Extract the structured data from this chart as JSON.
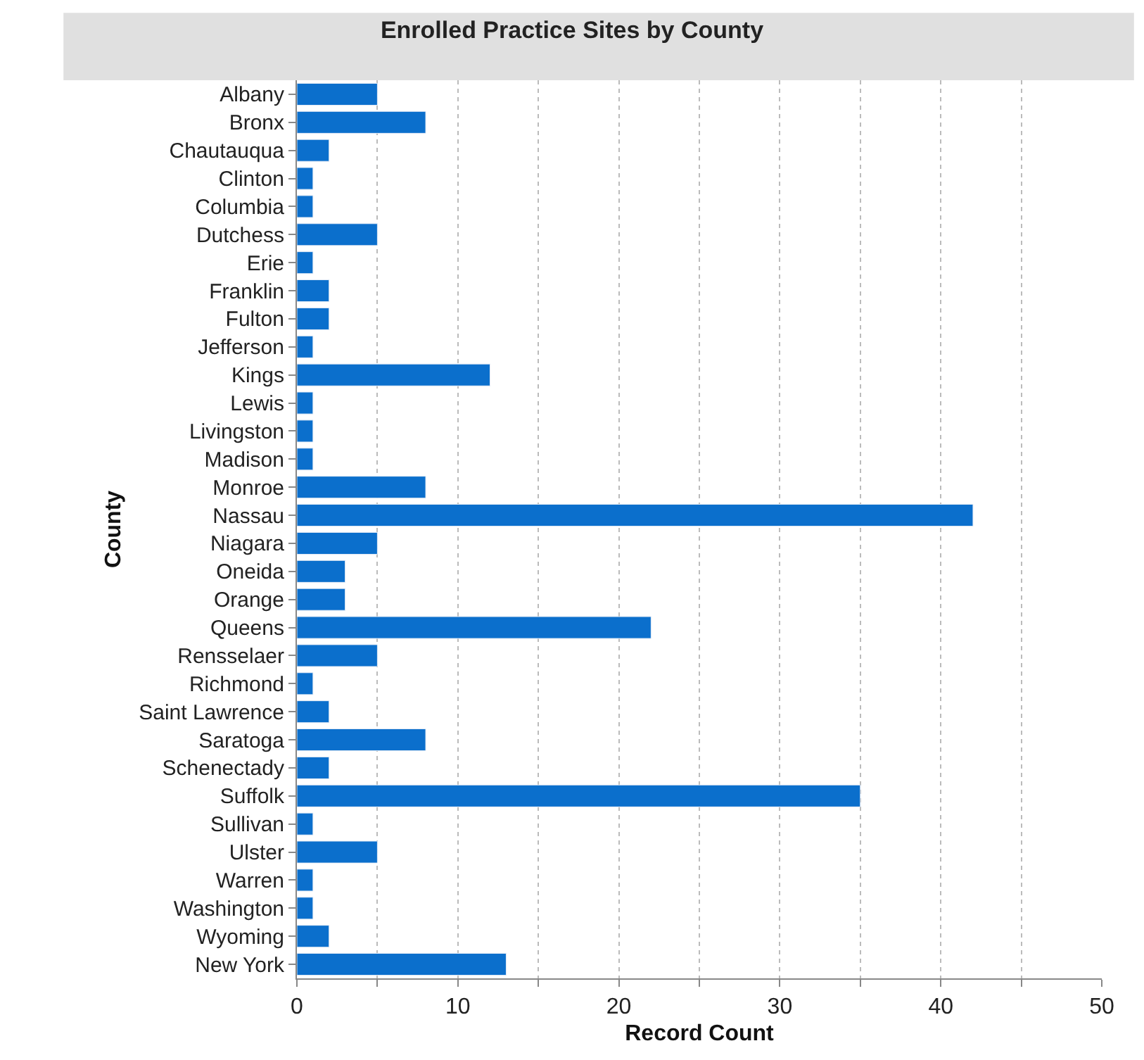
{
  "chart_data": {
    "type": "bar",
    "orientation": "horizontal",
    "title": "Enrolled Practice Sites by County",
    "xlabel": "Record Count",
    "ylabel": "County",
    "categories": [
      "Albany",
      "Bronx",
      "Chautauqua",
      "Clinton",
      "Columbia",
      "Dutchess",
      "Erie",
      "Franklin",
      "Fulton",
      "Jefferson",
      "Kings",
      "Lewis",
      "Livingston",
      "Madison",
      "Monroe",
      "Nassau",
      "Niagara",
      "Oneida",
      "Orange",
      "Queens",
      "Rensselaer",
      "Richmond",
      "Saint Lawrence",
      "Saratoga",
      "Schenectady",
      "Suffolk",
      "Sullivan",
      "Ulster",
      "Warren",
      "Washington",
      "Wyoming",
      "New York"
    ],
    "values": [
      5,
      8,
      2,
      1,
      1,
      5,
      1,
      2,
      2,
      1,
      12,
      1,
      1,
      1,
      8,
      42,
      5,
      3,
      3,
      22,
      5,
      1,
      2,
      8,
      2,
      35,
      1,
      5,
      1,
      1,
      2,
      13
    ],
    "color": "#0b6fcc",
    "xlim": [
      0,
      50
    ],
    "xticks": [
      0,
      {
        "value": 5,
        "label": null
      },
      10,
      {
        "value": 15,
        "label": null
      },
      20,
      {
        "value": 25,
        "label": null
      },
      30,
      {
        "value": 35,
        "label": null
      },
      40,
      {
        "value": 45,
        "label": null
      },
      50
    ],
    "grid": "x"
  }
}
